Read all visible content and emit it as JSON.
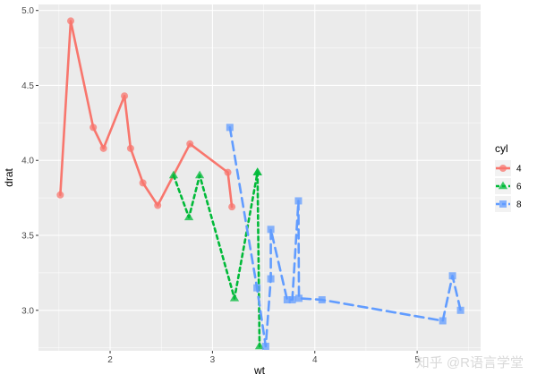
{
  "chart_data": {
    "type": "line",
    "xlabel": "wt",
    "ylabel": "drat",
    "xlim": [
      1.3,
      5.62
    ],
    "ylim": [
      2.73,
      5.04
    ],
    "x_ticks": [
      2,
      3,
      4,
      5
    ],
    "y_ticks": [
      3.0,
      3.5,
      4.0,
      4.5,
      5.0
    ],
    "x_tick_labels": [
      "2",
      "3",
      "4",
      "5"
    ],
    "y_tick_labels": [
      "3.0",
      "3.5",
      "4.0",
      "4.5",
      "5.0"
    ],
    "grid": true,
    "legend": {
      "title": "cyl",
      "position": "right",
      "entries": [
        "4",
        "6",
        "8"
      ]
    },
    "series": [
      {
        "name": "4",
        "color": "#F8766D",
        "linetype": "solid",
        "shape": "circle",
        "points": [
          {
            "x": 1.513,
            "y": 3.77
          },
          {
            "x": 1.615,
            "y": 4.93
          },
          {
            "x": 1.835,
            "y": 4.22
          },
          {
            "x": 1.935,
            "y": 4.08
          },
          {
            "x": 2.14,
            "y": 4.43
          },
          {
            "x": 2.2,
            "y": 4.08
          },
          {
            "x": 2.32,
            "y": 3.85
          },
          {
            "x": 2.465,
            "y": 3.7
          },
          {
            "x": 2.78,
            "y": 4.11
          },
          {
            "x": 3.15,
            "y": 3.92
          },
          {
            "x": 3.19,
            "y": 3.69
          }
        ]
      },
      {
        "name": "6",
        "color": "#00BA38",
        "linetype": "dashed",
        "shape": "triangle",
        "points": [
          {
            "x": 2.62,
            "y": 3.9
          },
          {
            "x": 2.77,
            "y": 3.62
          },
          {
            "x": 2.875,
            "y": 3.9
          },
          {
            "x": 3.215,
            "y": 3.08
          },
          {
            "x": 3.44,
            "y": 3.92
          },
          {
            "x": 3.44,
            "y": 3.92
          },
          {
            "x": 3.46,
            "y": 2.76
          }
        ]
      },
      {
        "name": "8",
        "color": "#619CFF",
        "linetype": "dashed",
        "shape": "square",
        "points": [
          {
            "x": 3.17,
            "y": 4.22
          },
          {
            "x": 3.435,
            "y": 3.15
          },
          {
            "x": 3.52,
            "y": 2.76
          },
          {
            "x": 3.57,
            "y": 3.21
          },
          {
            "x": 3.57,
            "y": 3.54
          },
          {
            "x": 3.73,
            "y": 3.07
          },
          {
            "x": 3.78,
            "y": 3.07
          },
          {
            "x": 3.84,
            "y": 3.73
          },
          {
            "x": 3.845,
            "y": 3.08
          },
          {
            "x": 4.07,
            "y": 3.07
          },
          {
            "x": 5.25,
            "y": 2.93
          },
          {
            "x": 5.345,
            "y": 3.23
          },
          {
            "x": 5.424,
            "y": 3.0
          }
        ]
      }
    ]
  },
  "watermark": "知乎 @R语言学堂"
}
